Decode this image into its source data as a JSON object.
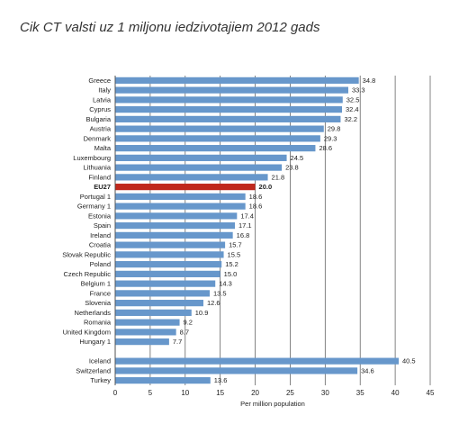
{
  "chart_data": {
    "type": "hbar",
    "title": "Cik CT valsti uz 1 miljonu iedzivotajiem 2012 gads",
    "xlabel": "Per million population",
    "categories": [
      "Greece",
      "Italy",
      "Latvia",
      "Cyprus",
      "Bulgaria",
      "Austria",
      "Denmark",
      "Malta",
      "Luxembourg",
      "Lithuania",
      "Finland",
      "EU27",
      "Portugal 1",
      "Germany 1",
      "Estonia",
      "Spain",
      "Ireland",
      "Croatia",
      "Slovak Republic",
      "Poland",
      "Czech Republic",
      "Belgium 1",
      "France",
      "Slovenia",
      "Netherlands",
      "Romania",
      "United Kingdom",
      "Hungary 1",
      null,
      "Iceland",
      "Switzerland",
      "Turkey"
    ],
    "values": [
      34.8,
      33.3,
      32.5,
      32.4,
      32.2,
      29.8,
      29.3,
      28.6,
      24.5,
      23.8,
      21.8,
      20,
      18.6,
      18.6,
      17.4,
      17.1,
      16.8,
      15.7,
      15.5,
      15.2,
      15,
      14.3,
      13.5,
      12.6,
      10.9,
      9.2,
      8.7,
      7.7,
      null,
      40.5,
      34.6,
      13.6
    ],
    "value_labels": [
      "34.8",
      "33.3",
      "32.5",
      "32.4",
      "32.2",
      "29.8",
      "29.3",
      "28.6",
      "24.5",
      "23.8",
      "21.8",
      "20.0",
      "18.6",
      "18.6",
      "17.4",
      "17.1",
      "16.8",
      "15.7",
      "15.5",
      "15.2",
      "15.0",
      "14.3",
      "13.5",
      "12.6",
      "10.9",
      "9.2",
      "8.7",
      "7.7",
      null,
      "40.5",
      "34.6",
      "13.6"
    ],
    "colors": [
      "#6797cb",
      "#6797cb",
      "#6797cb",
      "#6797cb",
      "#6797cb",
      "#6797cb",
      "#6797cb",
      "#6797cb",
      "#6797cb",
      "#6797cb",
      "#6797cb",
      "#c0281c",
      "#6797cb",
      "#6797cb",
      "#6797cb",
      "#6797cb",
      "#6797cb",
      "#6797cb",
      "#6797cb",
      "#6797cb",
      "#6797cb",
      "#6797cb",
      "#6797cb",
      "#6797cb",
      "#6797cb",
      "#6797cb",
      "#6797cb",
      "#6797cb",
      null,
      "#6797cb",
      "#6797cb",
      "#6797cb"
    ],
    "xlim": [
      0,
      45
    ],
    "xticks": [
      0,
      5,
      10,
      15,
      20,
      25,
      30,
      35,
      40,
      45
    ],
    "grid": true
  }
}
